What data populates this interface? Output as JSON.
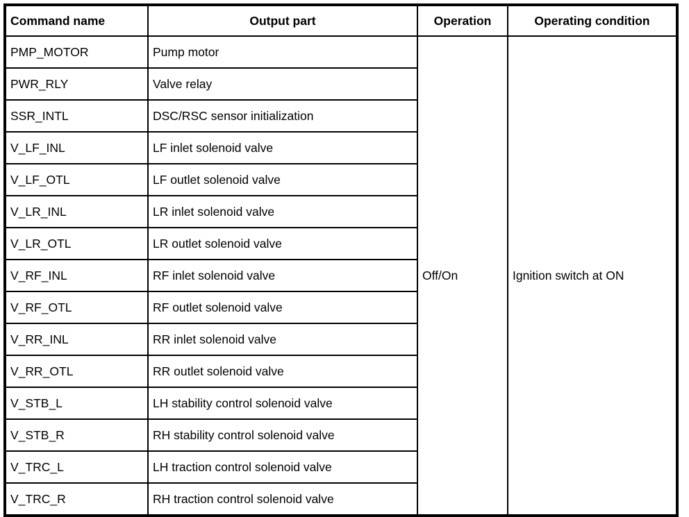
{
  "table": {
    "headers": {
      "command": "Command name",
      "output": "Output part",
      "operation": "Operation",
      "condition": "Operating condition"
    },
    "operation_value": "Off/On",
    "condition_value": "Ignition switch at ON",
    "rows": [
      {
        "command": "PMP_MOTOR",
        "output": "Pump motor"
      },
      {
        "command": "PWR_RLY",
        "output": "Valve relay"
      },
      {
        "command": "SSR_INTL",
        "output": "DSC/RSC sensor initialization"
      },
      {
        "command": "V_LF_INL",
        "output": "LF inlet solenoid valve"
      },
      {
        "command": "V_LF_OTL",
        "output": "LF outlet solenoid valve"
      },
      {
        "command": "V_LR_INL",
        "output": "LR inlet solenoid valve"
      },
      {
        "command": "V_LR_OTL",
        "output": "LR outlet solenoid valve"
      },
      {
        "command": "V_RF_INL",
        "output": "RF inlet solenoid valve"
      },
      {
        "command": "V_RF_OTL",
        "output": "RF outlet solenoid valve"
      },
      {
        "command": "V_RR_INL",
        "output": "RR inlet solenoid valve"
      },
      {
        "command": "V_RR_OTL",
        "output": "RR outlet solenoid valve"
      },
      {
        "command": "V_STB_L",
        "output": "LH stability control solenoid valve"
      },
      {
        "command": "V_STB_R",
        "output": "RH stability control solenoid valve"
      },
      {
        "command": "V_TRC_L",
        "output": "LH traction control solenoid valve"
      },
      {
        "command": "V_TRC_R",
        "output": "RH traction control solenoid valve"
      }
    ]
  }
}
